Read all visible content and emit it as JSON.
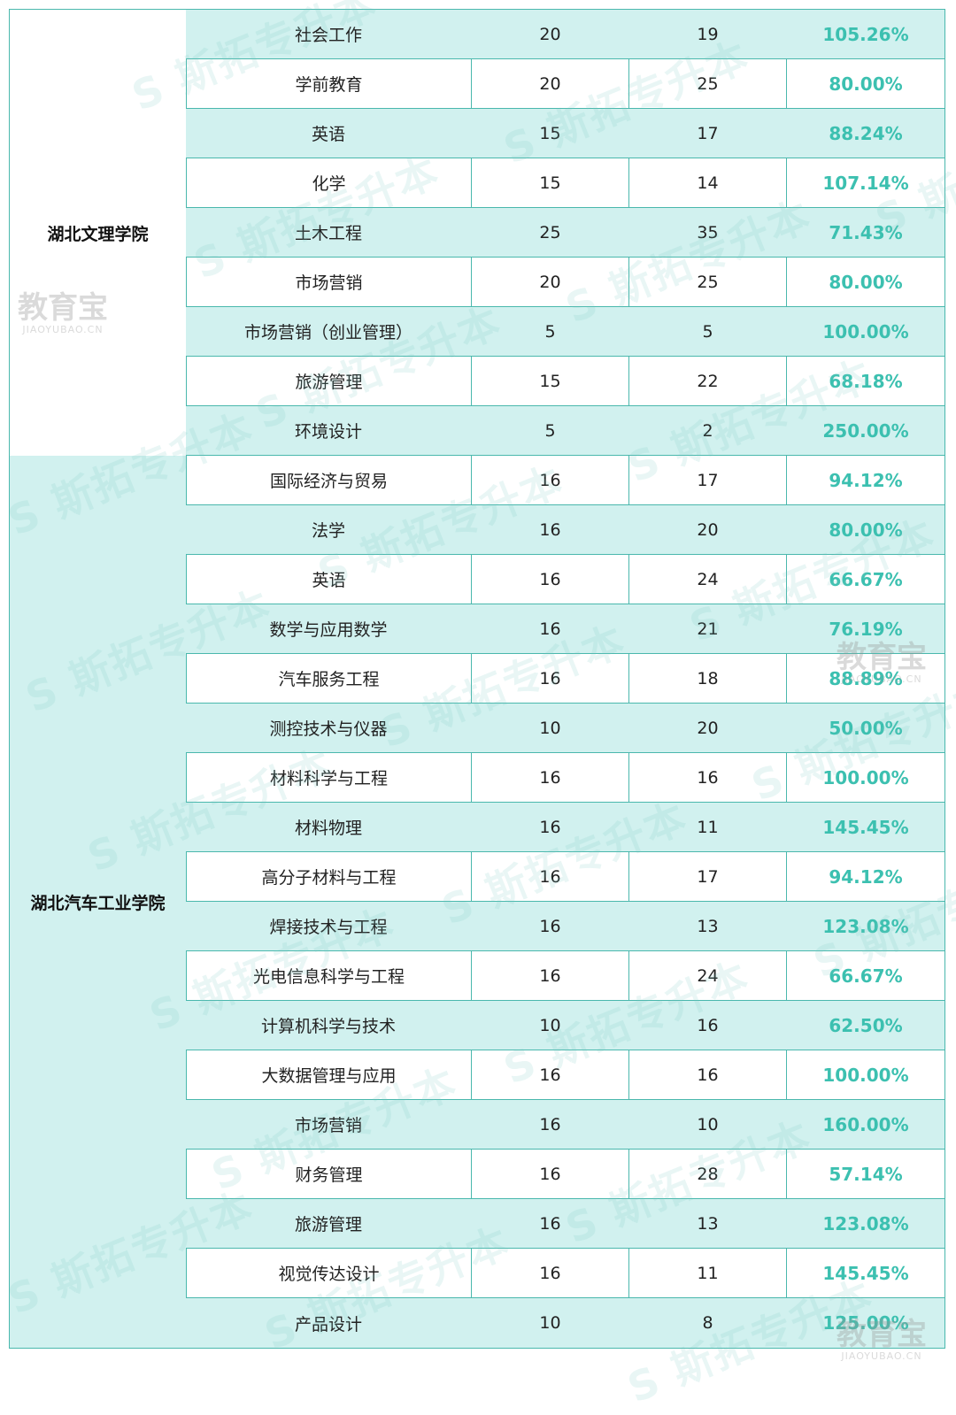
{
  "groups": [
    {
      "school": "湖北文理学院",
      "rows": [
        {
          "major": "社会工作",
          "plan": "20",
          "applicants": "19",
          "ratio": "105.26%"
        },
        {
          "major": "学前教育",
          "plan": "20",
          "applicants": "25",
          "ratio": "80.00%"
        },
        {
          "major": "英语",
          "plan": "15",
          "applicants": "17",
          "ratio": "88.24%"
        },
        {
          "major": "化学",
          "plan": "15",
          "applicants": "14",
          "ratio": "107.14%"
        },
        {
          "major": "土木工程",
          "plan": "25",
          "applicants": "35",
          "ratio": "71.43%"
        },
        {
          "major": "市场营销",
          "plan": "20",
          "applicants": "25",
          "ratio": "80.00%"
        },
        {
          "major": "市场营销（创业管理）",
          "plan": "5",
          "applicants": "5",
          "ratio": "100.00%"
        },
        {
          "major": "旅游管理",
          "plan": "15",
          "applicants": "22",
          "ratio": "68.18%"
        },
        {
          "major": "环境设计",
          "plan": "5",
          "applicants": "2",
          "ratio": "250.00%"
        }
      ]
    },
    {
      "school": "湖北汽车工业学院",
      "rows": [
        {
          "major": "国际经济与贸易",
          "plan": "16",
          "applicants": "17",
          "ratio": "94.12%"
        },
        {
          "major": "法学",
          "plan": "16",
          "applicants": "20",
          "ratio": "80.00%"
        },
        {
          "major": "英语",
          "plan": "16",
          "applicants": "24",
          "ratio": "66.67%"
        },
        {
          "major": "数学与应用数学",
          "plan": "16",
          "applicants": "21",
          "ratio": "76.19%"
        },
        {
          "major": "汽车服务工程",
          "plan": "16",
          "applicants": "18",
          "ratio": "88.89%"
        },
        {
          "major": "测控技术与仪器",
          "plan": "10",
          "applicants": "20",
          "ratio": "50.00%"
        },
        {
          "major": "材料科学与工程",
          "plan": "16",
          "applicants": "16",
          "ratio": "100.00%"
        },
        {
          "major": "材料物理",
          "plan": "16",
          "applicants": "11",
          "ratio": "145.45%"
        },
        {
          "major": "高分子材料与工程",
          "plan": "16",
          "applicants": "17",
          "ratio": "94.12%"
        },
        {
          "major": "焊接技术与工程",
          "plan": "16",
          "applicants": "13",
          "ratio": "123.08%"
        },
        {
          "major": "光电信息科学与工程",
          "plan": "16",
          "applicants": "24",
          "ratio": "66.67%"
        },
        {
          "major": "计算机科学与技术",
          "plan": "10",
          "applicants": "16",
          "ratio": "62.50%"
        },
        {
          "major": "大数据管理与应用",
          "plan": "16",
          "applicants": "16",
          "ratio": "100.00%"
        },
        {
          "major": "市场营销",
          "plan": "16",
          "applicants": "10",
          "ratio": "160.00%"
        },
        {
          "major": "财务管理",
          "plan": "16",
          "applicants": "28",
          "ratio": "57.14%"
        },
        {
          "major": "旅游管理",
          "plan": "16",
          "applicants": "13",
          "ratio": "123.08%"
        },
        {
          "major": "视觉传达设计",
          "plan": "16",
          "applicants": "11",
          "ratio": "145.45%"
        },
        {
          "major": "产品设计",
          "plan": "10",
          "applicants": "8",
          "ratio": "125.00%"
        }
      ]
    }
  ],
  "watermark": {
    "text": "斯拓专升本",
    "logo_big": "教育宝",
    "logo_small": "JIAOYUBAO.CN"
  }
}
